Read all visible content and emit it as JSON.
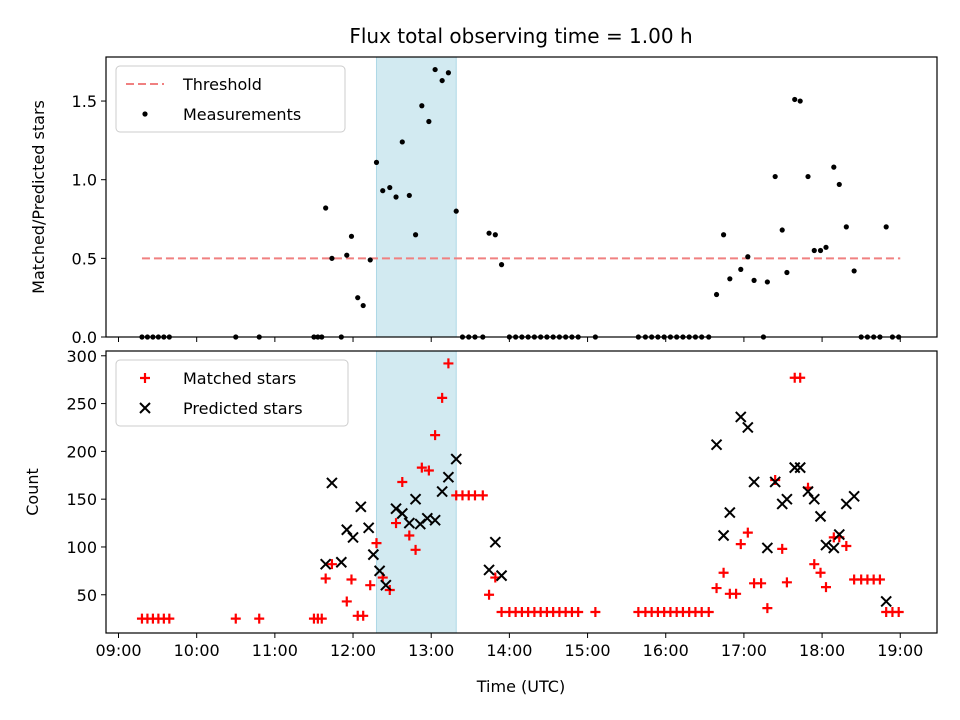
{
  "chart_data": {
    "type": "scatter",
    "title": "Flux total observing time = 1.00 h",
    "xlabel": "Time (UTC)",
    "x_ticks": [
      "09:00",
      "10:00",
      "11:00",
      "12:00",
      "13:00",
      "14:00",
      "15:00",
      "16:00",
      "17:00",
      "18:00",
      "19:00"
    ],
    "x_range_hours": [
      8.84,
      19.47
    ],
    "shaded_interval_hours": [
      12.3,
      13.32
    ],
    "shade_color": "#add8e6",
    "top_panel": {
      "ylabel": "Matched/Predicted stars",
      "ylim": [
        0,
        1.78
      ],
      "y_ticks": [
        "0.0",
        "0.5",
        "1.0",
        "1.5"
      ],
      "legend_position": "upper-left",
      "threshold": {
        "name": "Threshold",
        "y": 0.5,
        "x_span_hours": [
          9.3,
          19.0
        ],
        "color": "#f08080"
      },
      "measurements": {
        "name": "Measurements",
        "color": "#000000",
        "points": [
          [
            9.3,
            0
          ],
          [
            9.37,
            0
          ],
          [
            9.44,
            0
          ],
          [
            9.51,
            0
          ],
          [
            9.58,
            0
          ],
          [
            9.65,
            0
          ],
          [
            10.5,
            0
          ],
          [
            10.8,
            0
          ],
          [
            11.5,
            0
          ],
          [
            11.55,
            0
          ],
          [
            11.6,
            0
          ],
          [
            11.85,
            0
          ],
          [
            11.65,
            0.82
          ],
          [
            11.73,
            0.5
          ],
          [
            11.92,
            0.52
          ],
          [
            11.98,
            0.64
          ],
          [
            12.06,
            0.25
          ],
          [
            12.13,
            0.2
          ],
          [
            12.22,
            0.49
          ],
          [
            12.3,
            1.11
          ],
          [
            12.38,
            0.93
          ],
          [
            12.47,
            0.95
          ],
          [
            12.55,
            0.89
          ],
          [
            12.63,
            1.24
          ],
          [
            12.72,
            0.9
          ],
          [
            12.8,
            0.65
          ],
          [
            12.88,
            1.47
          ],
          [
            12.97,
            1.37
          ],
          [
            13.05,
            1.7
          ],
          [
            13.14,
            1.63
          ],
          [
            13.22,
            1.68
          ],
          [
            13.32,
            0.8
          ],
          [
            13.4,
            0
          ],
          [
            13.48,
            0
          ],
          [
            13.56,
            0
          ],
          [
            13.66,
            0
          ],
          [
            13.74,
            0.66
          ],
          [
            13.82,
            0.65
          ],
          [
            13.9,
            0.46
          ],
          [
            14.0,
            0
          ],
          [
            14.08,
            0
          ],
          [
            14.16,
            0
          ],
          [
            14.24,
            0
          ],
          [
            14.32,
            0
          ],
          [
            14.4,
            0
          ],
          [
            14.48,
            0
          ],
          [
            14.56,
            0
          ],
          [
            14.64,
            0
          ],
          [
            14.72,
            0
          ],
          [
            14.8,
            0
          ],
          [
            14.88,
            0
          ],
          [
            15.1,
            0
          ],
          [
            15.65,
            0
          ],
          [
            15.74,
            0
          ],
          [
            15.82,
            0
          ],
          [
            15.9,
            0
          ],
          [
            15.98,
            0
          ],
          [
            16.06,
            0
          ],
          [
            16.14,
            0
          ],
          [
            16.22,
            0
          ],
          [
            16.3,
            0
          ],
          [
            16.38,
            0
          ],
          [
            16.46,
            0
          ],
          [
            16.55,
            0
          ],
          [
            16.65,
            0.27
          ],
          [
            16.74,
            0.65
          ],
          [
            16.82,
            0.37
          ],
          [
            16.96,
            0.43
          ],
          [
            17.05,
            0.51
          ],
          [
            17.13,
            0.36
          ],
          [
            17.25,
            0
          ],
          [
            17.3,
            0.35
          ],
          [
            17.4,
            1.02
          ],
          [
            17.49,
            0.68
          ],
          [
            17.55,
            0.41
          ],
          [
            17.65,
            1.51
          ],
          [
            17.72,
            1.5
          ],
          [
            17.82,
            1.02
          ],
          [
            17.9,
            0.55
          ],
          [
            17.98,
            0.55
          ],
          [
            18.05,
            0.57
          ],
          [
            18.15,
            1.08
          ],
          [
            18.22,
            0.97
          ],
          [
            18.31,
            0.7
          ],
          [
            18.41,
            0.42
          ],
          [
            18.5,
            0
          ],
          [
            18.58,
            0
          ],
          [
            18.66,
            0
          ],
          [
            18.74,
            0
          ],
          [
            18.82,
            0.7
          ],
          [
            18.9,
            0
          ],
          [
            18.98,
            0
          ]
        ]
      }
    },
    "bottom_panel": {
      "ylabel": "Count",
      "ylim": [
        10,
        305
      ],
      "y_ticks": [
        "50",
        "100",
        "150",
        "200",
        "250",
        "300"
      ],
      "legend_position": "upper-left",
      "series": [
        {
          "name": "Matched stars",
          "marker": "plus",
          "color": "#ff0000",
          "points": [
            [
              9.3,
              25
            ],
            [
              9.37,
              25
            ],
            [
              9.44,
              25
            ],
            [
              9.51,
              25
            ],
            [
              9.58,
              25
            ],
            [
              9.65,
              25
            ],
            [
              10.5,
              25
            ],
            [
              10.8,
              25
            ],
            [
              11.5,
              25
            ],
            [
              11.55,
              25
            ],
            [
              11.6,
              25
            ],
            [
              11.65,
              67
            ],
            [
              11.73,
              82
            ],
            [
              11.92,
              43
            ],
            [
              11.98,
              66
            ],
            [
              12.06,
              28
            ],
            [
              12.13,
              28
            ],
            [
              12.22,
              60
            ],
            [
              12.3,
              104
            ],
            [
              12.38,
              68
            ],
            [
              12.47,
              55
            ],
            [
              12.55,
              125
            ],
            [
              12.63,
              168
            ],
            [
              12.72,
              112
            ],
            [
              12.8,
              97
            ],
            [
              12.88,
              183
            ],
            [
              12.97,
              180
            ],
            [
              13.05,
              217
            ],
            [
              13.14,
              256
            ],
            [
              13.22,
              292
            ],
            [
              13.32,
              154
            ],
            [
              13.4,
              154
            ],
            [
              13.48,
              154
            ],
            [
              13.56,
              154
            ],
            [
              13.66,
              154
            ],
            [
              13.74,
              50
            ],
            [
              13.82,
              68
            ],
            [
              13.9,
              32
            ],
            [
              14.0,
              32
            ],
            [
              14.08,
              32
            ],
            [
              14.16,
              32
            ],
            [
              14.24,
              32
            ],
            [
              14.32,
              32
            ],
            [
              14.4,
              32
            ],
            [
              14.48,
              32
            ],
            [
              14.56,
              32
            ],
            [
              14.64,
              32
            ],
            [
              14.72,
              32
            ],
            [
              14.8,
              32
            ],
            [
              14.88,
              32
            ],
            [
              15.1,
              32
            ],
            [
              15.65,
              32
            ],
            [
              15.74,
              32
            ],
            [
              15.82,
              32
            ],
            [
              15.9,
              32
            ],
            [
              15.98,
              32
            ],
            [
              16.06,
              32
            ],
            [
              16.14,
              32
            ],
            [
              16.22,
              32
            ],
            [
              16.3,
              32
            ],
            [
              16.38,
              32
            ],
            [
              16.46,
              32
            ],
            [
              16.55,
              32
            ],
            [
              16.65,
              57
            ],
            [
              16.74,
              73
            ],
            [
              16.82,
              51
            ],
            [
              16.9,
              51
            ],
            [
              16.96,
              103
            ],
            [
              17.05,
              115
            ],
            [
              17.13,
              62
            ],
            [
              17.22,
              62
            ],
            [
              17.3,
              36
            ],
            [
              17.4,
              170
            ],
            [
              17.49,
              98
            ],
            [
              17.55,
              63
            ],
            [
              17.65,
              277
            ],
            [
              17.72,
              277
            ],
            [
              17.82,
              162
            ],
            [
              17.9,
              82
            ],
            [
              17.98,
              73
            ],
            [
              18.05,
              58
            ],
            [
              18.15,
              110
            ],
            [
              18.22,
              110
            ],
            [
              18.31,
              101
            ],
            [
              18.41,
              66
            ],
            [
              18.5,
              66
            ],
            [
              18.58,
              66
            ],
            [
              18.66,
              66
            ],
            [
              18.74,
              66
            ],
            [
              18.82,
              32
            ],
            [
              18.9,
              32
            ],
            [
              18.98,
              32
            ]
          ]
        },
        {
          "name": "Predicted stars",
          "marker": "x",
          "color": "#000000",
          "points": [
            [
              11.65,
              82
            ],
            [
              11.73,
              167
            ],
            [
              11.85,
              84
            ],
            [
              11.92,
              118
            ],
            [
              12.0,
              110
            ],
            [
              12.1,
              142
            ],
            [
              12.2,
              120
            ],
            [
              12.26,
              92
            ],
            [
              12.34,
              75
            ],
            [
              12.42,
              60
            ],
            [
              12.55,
              140
            ],
            [
              12.63,
              135
            ],
            [
              12.72,
              125
            ],
            [
              12.8,
              150
            ],
            [
              12.86,
              124
            ],
            [
              12.95,
              130
            ],
            [
              13.05,
              128
            ],
            [
              13.14,
              158
            ],
            [
              13.22,
              173
            ],
            [
              13.32,
              192
            ],
            [
              13.74,
              76
            ],
            [
              13.82,
              105
            ],
            [
              13.9,
              70
            ],
            [
              16.65,
              207
            ],
            [
              16.74,
              112
            ],
            [
              16.82,
              136
            ],
            [
              16.96,
              236
            ],
            [
              17.05,
              225
            ],
            [
              17.13,
              168
            ],
            [
              17.3,
              99
            ],
            [
              17.4,
              168
            ],
            [
              17.49,
              145
            ],
            [
              17.55,
              150
            ],
            [
              17.65,
              183
            ],
            [
              17.72,
              183
            ],
            [
              17.82,
              158
            ],
            [
              17.9,
              150
            ],
            [
              17.98,
              132
            ],
            [
              18.05,
              102
            ],
            [
              18.15,
              99
            ],
            [
              18.22,
              113
            ],
            [
              18.31,
              145
            ],
            [
              18.41,
              153
            ],
            [
              18.82,
              43
            ]
          ]
        }
      ]
    }
  }
}
